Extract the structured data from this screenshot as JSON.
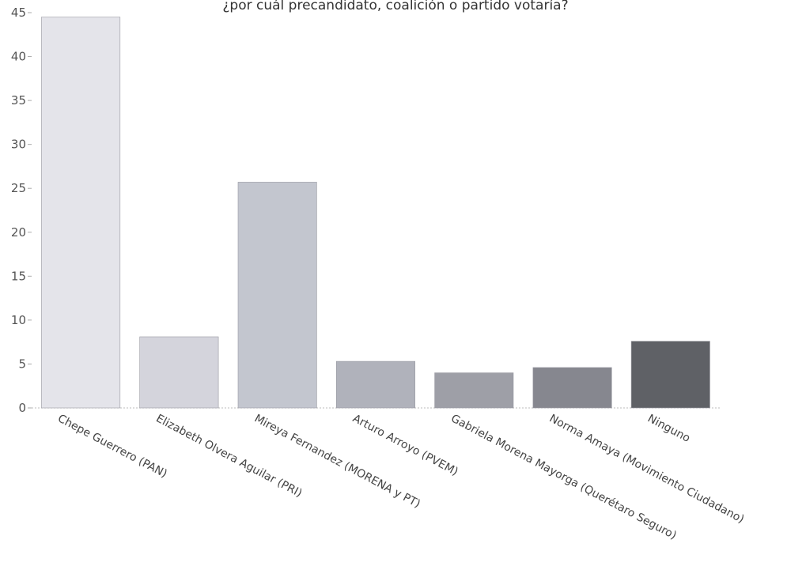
{
  "chart_data": {
    "type": "bar",
    "title": "¿por cuál precandidato, coalición o partido votaría?",
    "xlabel": "",
    "ylabel": "",
    "ylim": [
      0,
      45
    ],
    "yticks": [
      0,
      5,
      10,
      15,
      20,
      25,
      30,
      35,
      40,
      45
    ],
    "categories": [
      "Chepe Guerrero (PAN)",
      "Elizabeth Olvera Aguilar (PRI)",
      "Mireya Fernandez (MORENA y PT)",
      "Arturo Arroyo (PVEM)",
      "Gabriela Morena Mayorga (Querétaro Seguro)",
      "Norma Amaya (Movimiento Ciudadano)",
      "Ninguno"
    ],
    "values": [
      44.5,
      8.1,
      25.7,
      5.3,
      4.0,
      4.6,
      7.6
    ],
    "colors": [
      "#e4e4ea",
      "#d4d4dc",
      "#c3c6cf",
      "#b0b2bb",
      "#9e9fa7",
      "#86878f",
      "#5f6166"
    ],
    "grid": false,
    "legend": "none"
  }
}
